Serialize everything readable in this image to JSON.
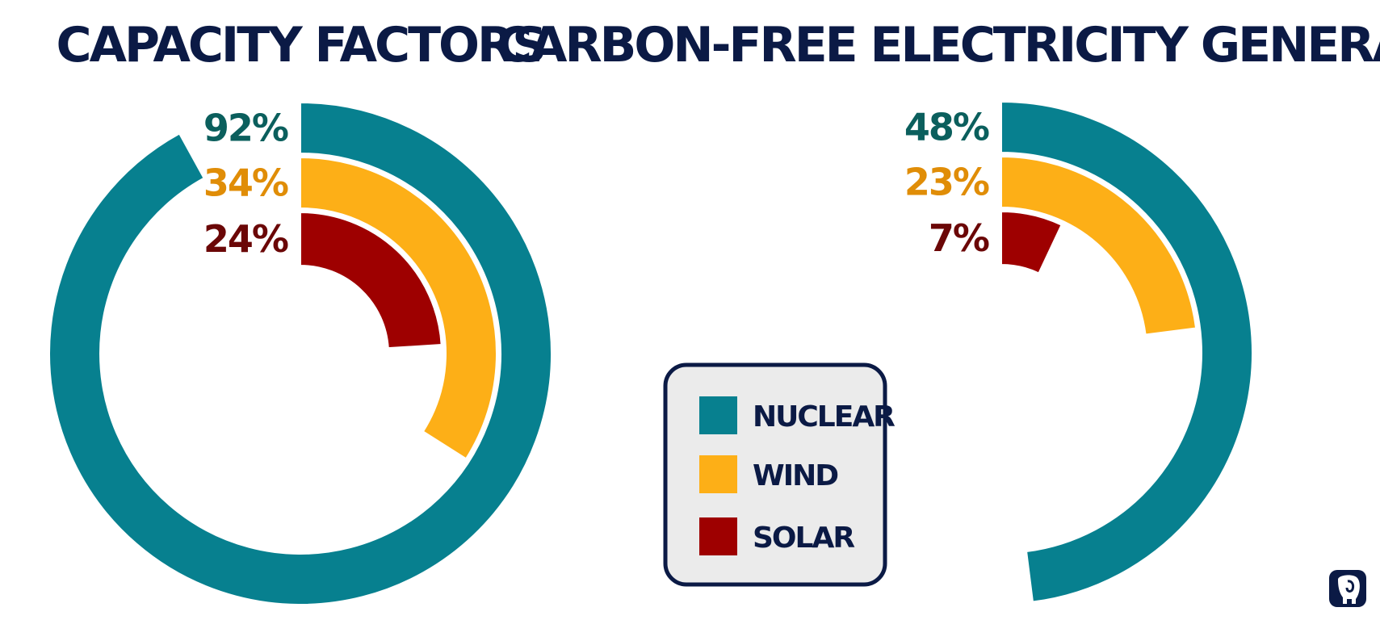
{
  "colors": {
    "nuclear": "#07808f",
    "wind": "#fdaf17",
    "solar": "#9e0000",
    "nuclear_text": "#0b5f5d",
    "wind_text": "#e08d07",
    "solar_text": "#6b0707",
    "title": "#0b1a45",
    "legend_bg": "#ebebeb",
    "legend_border": "#0b1a45"
  },
  "chart_data": [
    {
      "type": "radial-bar",
      "title": "CAPACITY FACTORS",
      "unit": "%",
      "max": 100,
      "categories": [
        "Nuclear",
        "Wind",
        "Solar"
      ],
      "values": [
        92,
        34,
        24
      ],
      "labels": [
        "92%",
        "34%",
        "24%"
      ]
    },
    {
      "type": "radial-bar",
      "title": "CARBON-FREE ELECTRICITY GENERATED",
      "unit": "%",
      "max": 100,
      "categories": [
        "Nuclear",
        "Wind",
        "Solar"
      ],
      "values": [
        48,
        23,
        7
      ],
      "labels": [
        "48%",
        "23%",
        "7%"
      ]
    }
  ],
  "legend": {
    "items": [
      {
        "key": "nuclear",
        "label": "NUCLEAR"
      },
      {
        "key": "wind",
        "label": "WIND"
      },
      {
        "key": "solar",
        "label": "SOLAR"
      }
    ],
    "placement": "bottom-center"
  },
  "logo": {
    "icon": "elephant-icon"
  }
}
